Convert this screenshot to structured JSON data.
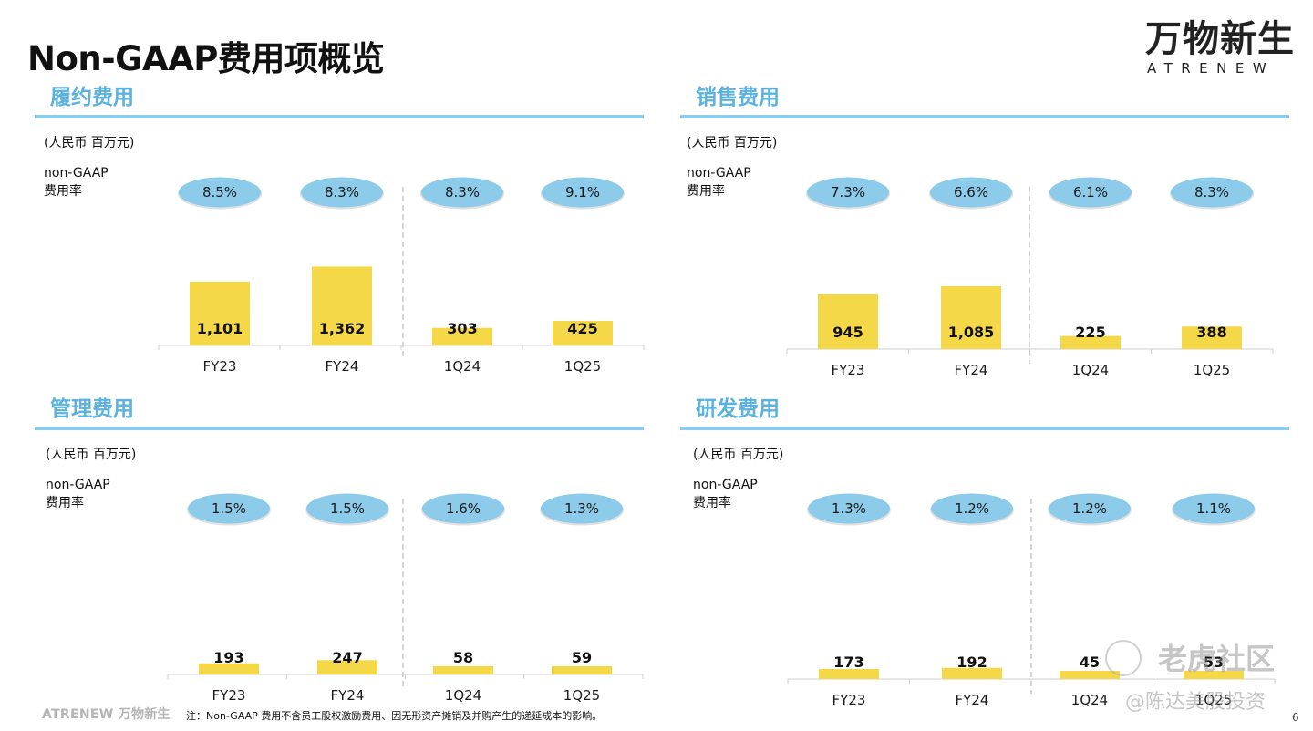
{
  "title": "Non-GAAP费用项概览",
  "logo": {
    "cn": "万物新生",
    "en": "ATRENEW"
  },
  "footer": {
    "brand": "ATRENEW 万物新生",
    "note": "注：Non-GAAP 费用不含员工股权激励费用、因无形资产摊销及并购产生的递延成本的影响。",
    "page": "6"
  },
  "watermark": {
    "line1": "老虎社区",
    "line2": "@陈达美股投资"
  },
  "colors": {
    "bar": "#f5d847",
    "bubble": "#8ccbea",
    "heading": "#5bb2de",
    "rule": "#8ccbea"
  },
  "chart_data": [
    {
      "type": "bar",
      "title": "履约费用",
      "unit": "(人民币 百万元)",
      "rate_label": [
        "non-GAAP",
        "费用率"
      ],
      "categories": [
        "FY23",
        "FY24",
        "1Q24",
        "1Q25"
      ],
      "values": [
        1101,
        1362,
        303,
        425
      ],
      "value_labels": [
        "1,101",
        "1,362",
        "303",
        "425"
      ],
      "rates": [
        "8.5%",
        "8.3%",
        "8.3%",
        "9.1%"
      ],
      "ylim": [
        0,
        1500
      ]
    },
    {
      "type": "bar",
      "title": "销售费用",
      "unit": "(人民币 百万元)",
      "rate_label": [
        "non-GAAP",
        "费用率"
      ],
      "categories": [
        "FY23",
        "FY24",
        "1Q24",
        "1Q25"
      ],
      "values": [
        945,
        1085,
        225,
        388
      ],
      "value_labels": [
        "945",
        "1,085",
        "225",
        "388"
      ],
      "rates": [
        "7.3%",
        "6.6%",
        "6.1%",
        "8.3%"
      ],
      "ylim": [
        0,
        1500
      ]
    },
    {
      "type": "bar",
      "title": "管理费用",
      "unit": "(人民币 百万元)",
      "rate_label": [
        "non-GAAP",
        "费用率"
      ],
      "categories": [
        "FY23",
        "FY24",
        "1Q24",
        "1Q25"
      ],
      "values": [
        193,
        247,
        58,
        59
      ],
      "value_labels": [
        "193",
        "247",
        "58",
        "59"
      ],
      "rates": [
        "1.5%",
        "1.5%",
        "1.6%",
        "1.3%"
      ],
      "ylim": [
        0,
        1500
      ]
    },
    {
      "type": "bar",
      "title": "研发费用",
      "unit": "(人民币 百万元)",
      "rate_label": [
        "non-GAAP",
        "费用率"
      ],
      "categories": [
        "FY23",
        "FY24",
        "1Q24",
        "1Q25"
      ],
      "values": [
        173,
        192,
        45,
        53
      ],
      "value_labels": [
        "173",
        "192",
        "45",
        "53"
      ],
      "rates": [
        "1.3%",
        "1.2%",
        "1.2%",
        "1.1%"
      ],
      "ylim": [
        0,
        1500
      ]
    }
  ]
}
